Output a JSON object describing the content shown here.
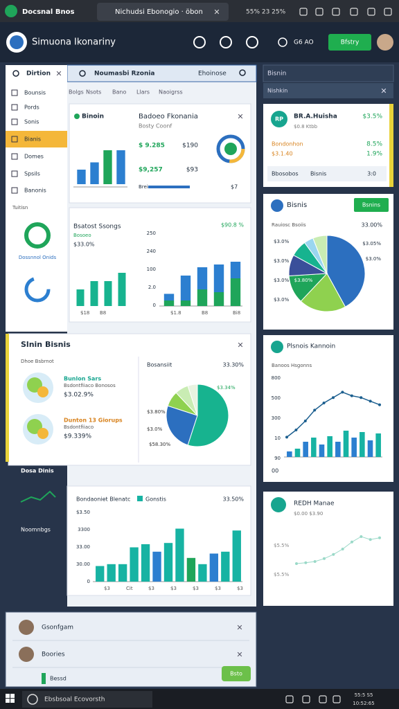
{
  "browser": {
    "tab1": "Docsnal Bnos",
    "tab2": "Nichudsi Ebonogio · öbon",
    "status": "55% 23 25%"
  },
  "header": {
    "title": "Simuona Ikonariny",
    "search": "G6 AO",
    "button": "Bfstry"
  },
  "sidebar": {
    "title": "Dirtion",
    "items": [
      "Bounsis",
      "Pords",
      "Sonis",
      "Bianis",
      "Domes",
      "Spsils",
      "Banonis"
    ],
    "section": "Tuitisn",
    "donut_label": "Dossnnol Onids",
    "footer": "Dosa Dinis",
    "footer2": "Noomnbgs"
  },
  "main": {
    "title": "Noumasbi Rzonia",
    "title_right": "Ehoinose",
    "tabs": [
      "Bolgs",
      "Nsots",
      "Bano",
      "Llars",
      "Naoigrss"
    ]
  },
  "card1": {
    "tag": "Binoin",
    "title": "Badoeo Fkonania",
    "subtitle": "Bosty Coonf",
    "stats": [
      "$ 9.285",
      "$190",
      "$9,257",
      "$93"
    ],
    "footer": [
      "Brei",
      "$7"
    ],
    "chart": {
      "ylim": [
        0,
        100
      ],
      "values": [
        30,
        45,
        70,
        70
      ],
      "colors": [
        "#2c7fd0",
        "#2c7fd0",
        "#1fa55a",
        "#2c7fd0"
      ]
    }
  },
  "card2": {
    "title": "Bsatost Ssongs",
    "sub": "Bosoeo",
    "value": "$33.0%",
    "right_value": "$90.8 %",
    "y_labels": [
      "250",
      "240",
      "100",
      "2.0",
      "0"
    ],
    "x_labels": [
      "$18",
      "B8",
      "$1.8",
      "B8",
      "Bi8"
    ],
    "chart_left": {
      "ylim": [
        0,
        100
      ],
      "values": [
        40,
        60,
        60,
        80
      ],
      "colors": [
        "#17b38f"
      ]
    },
    "chart_right": {
      "ylim": [
        0,
        100
      ],
      "series": [
        {
          "color": "#1fa55a",
          "values": [
            10,
            10,
            30,
            25,
            50
          ]
        },
        {
          "color": "#2c7fd0",
          "values": [
            12,
            45,
            40,
            50,
            30
          ]
        }
      ]
    }
  },
  "card3": {
    "title": "Slnin Bisnis",
    "sub": "Dhoe Bsbrnot",
    "items": [
      {
        "name": "Bunlon Sars",
        "sub": "Bsdontfiiaco Bonosos",
        "value": "$3.02.9%"
      },
      {
        "name": "Dunton 13 Giorups",
        "sub": "Bsdontfiiaco",
        "value": "$9.339%"
      }
    ],
    "pie_title": "Bosansiit",
    "pie_value": "33.30%",
    "pie_labels": [
      "$3.34%",
      "$3.80%",
      "$3.0%",
      "$58.30%"
    ],
    "pie": {
      "values": [
        55,
        25,
        8,
        7,
        5
      ],
      "colors": [
        "#17b38f",
        "#2c6fbf",
        "#8fd14f",
        "#c9ecb3",
        "#e8f3e0"
      ]
    }
  },
  "card4": {
    "title": "Bondaoniet Blenatc",
    "legend": "Gonstis",
    "value": "33.50%",
    "y_labels": [
      "$3.50",
      "3300",
      "33.00",
      "30.00",
      "0"
    ],
    "x_labels": [
      "$3",
      "Cit",
      "$3",
      "$3",
      "$3",
      "$3",
      "$3"
    ],
    "chart": {
      "ylim": [
        0,
        100
      ],
      "values": [
        25,
        28,
        28,
        55,
        60,
        48,
        62,
        85,
        38,
        28,
        45,
        48,
        82
      ],
      "colors": [
        "#17b3a3",
        "#17b3a3",
        "#17b3a3",
        "#17b3a3",
        "#17b3a3",
        "#2c7fd0",
        "#17b3a3",
        "#17b3a3",
        "#1fa55a",
        "#17b3a3",
        "#2c7fd0",
        "#17b3a3",
        "#17b3a3"
      ]
    }
  },
  "right": {
    "title": "Bisnin",
    "sub": "Nishkin"
  },
  "r1": {
    "icon": "RP",
    "title": "BR.A.Huisha",
    "sub": "$0.8 Ktbb",
    "value": "$3.5%",
    "rows": [
      [
        "Bondonhon",
        "8.5%"
      ],
      [
        "$3.1.40",
        "1.9%"
      ]
    ],
    "footer": [
      "Bbosobos",
      "Bisnis",
      "3:0"
    ]
  },
  "r2": {
    "title": "Bisnis",
    "button": "Bsnins",
    "sub": "Rauiosc Bsoiis",
    "value": "33.00%",
    "left_labels": [
      "$3.0%",
      "$3.0%",
      "$3.0%",
      "$3.0%"
    ],
    "right_labels": [
      "$3.05%",
      "$3.0%"
    ],
    "inner_label": "$3.80%",
    "pie": {
      "values": [
        42,
        20,
        12,
        9,
        7,
        4,
        6
      ],
      "colors": [
        "#2c6fbf",
        "#8fd14f",
        "#1fa55a",
        "#3a4f9a",
        "#17b38f",
        "#9ad6f0",
        "#c9ecb3"
      ]
    }
  },
  "r3": {
    "title": "Plsnois Kannoin",
    "sub": "Banoos Hsgonns",
    "y_labels": [
      "800",
      "500",
      "300",
      "10",
      "90"
    ],
    "x_label": "00",
    "bars": {
      "ylim": [
        0,
        100
      ],
      "values": [
        8,
        12,
        22,
        28,
        18,
        30,
        22,
        38,
        28,
        36,
        24,
        34
      ],
      "colors": [
        "#2c7fd0",
        "#17b3a3"
      ]
    },
    "line": {
      "ylim": [
        0,
        100
      ],
      "values": [
        22,
        30,
        40,
        52,
        60,
        66,
        72,
        68,
        66,
        62,
        58
      ]
    }
  },
  "r4": {
    "title": "REDH Manae",
    "sub": "$0.00 $3.90",
    "labels": [
      "$5.5%",
      "$5.5%"
    ],
    "line": {
      "ylim": [
        0,
        100
      ],
      "values": [
        10,
        12,
        15,
        22,
        32,
        45,
        62,
        75,
        68,
        72
      ]
    }
  },
  "bottom": {
    "rows": [
      "Gsonfgam",
      "Boories"
    ],
    "note": "Bessd",
    "button": "Bsto"
  },
  "taskbar": {
    "search": "Ebsbsoal Ecovorsth",
    "clock": "55:5 S5",
    "date": "10:52:65"
  }
}
